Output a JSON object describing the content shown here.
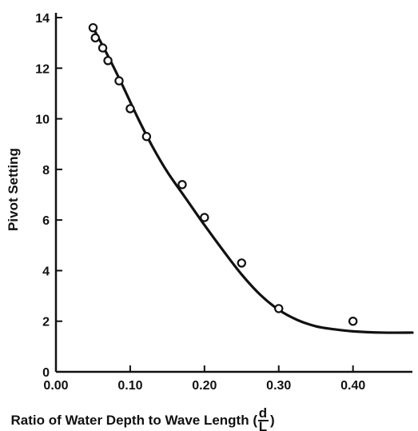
{
  "chart_data": {
    "type": "scatter",
    "title": "",
    "xlabel": "Ratio of Water Depth to Wave Length (",
    "xlabel_fraction": {
      "numerator": "d",
      "denominator": "L"
    },
    "xlabel_close": ")",
    "ylabel": "Pivot Setting",
    "xlim": [
      0,
      0.48
    ],
    "ylim": [
      0,
      14
    ],
    "x_ticks": [
      0.0,
      0.1,
      0.2,
      0.3,
      0.4
    ],
    "x_tick_labels": [
      "0.00",
      "0.10",
      "0.20",
      "0.30",
      "0.40"
    ],
    "y_ticks": [
      0,
      2,
      4,
      6,
      8,
      10,
      12,
      14
    ],
    "y_tick_labels": [
      "0",
      "2",
      "4",
      "6",
      "8",
      "10",
      "12",
      "14"
    ],
    "grid": false,
    "series": [
      {
        "marker": "open-circle",
        "x": [
          0.05,
          0.053,
          0.063,
          0.07,
          0.085,
          0.1,
          0.122,
          0.17,
          0.2,
          0.25,
          0.3,
          0.4
        ],
        "y": [
          13.6,
          13.2,
          12.8,
          12.3,
          11.5,
          10.4,
          9.3,
          7.4,
          6.1,
          4.3,
          2.5,
          2.0
        ]
      },
      {
        "line": "smooth-fit",
        "x": [
          0.05,
          0.06,
          0.075,
          0.09,
          0.11,
          0.13,
          0.15,
          0.175,
          0.2,
          0.225,
          0.25,
          0.275,
          0.3,
          0.325,
          0.35,
          0.375,
          0.4,
          0.44,
          0.48
        ],
        "y": [
          13.6,
          13.05,
          12.2,
          11.3,
          10.05,
          8.9,
          7.9,
          6.85,
          5.8,
          4.8,
          3.85,
          3.05,
          2.45,
          2.05,
          1.8,
          1.68,
          1.6,
          1.55,
          1.55
        ]
      }
    ]
  }
}
